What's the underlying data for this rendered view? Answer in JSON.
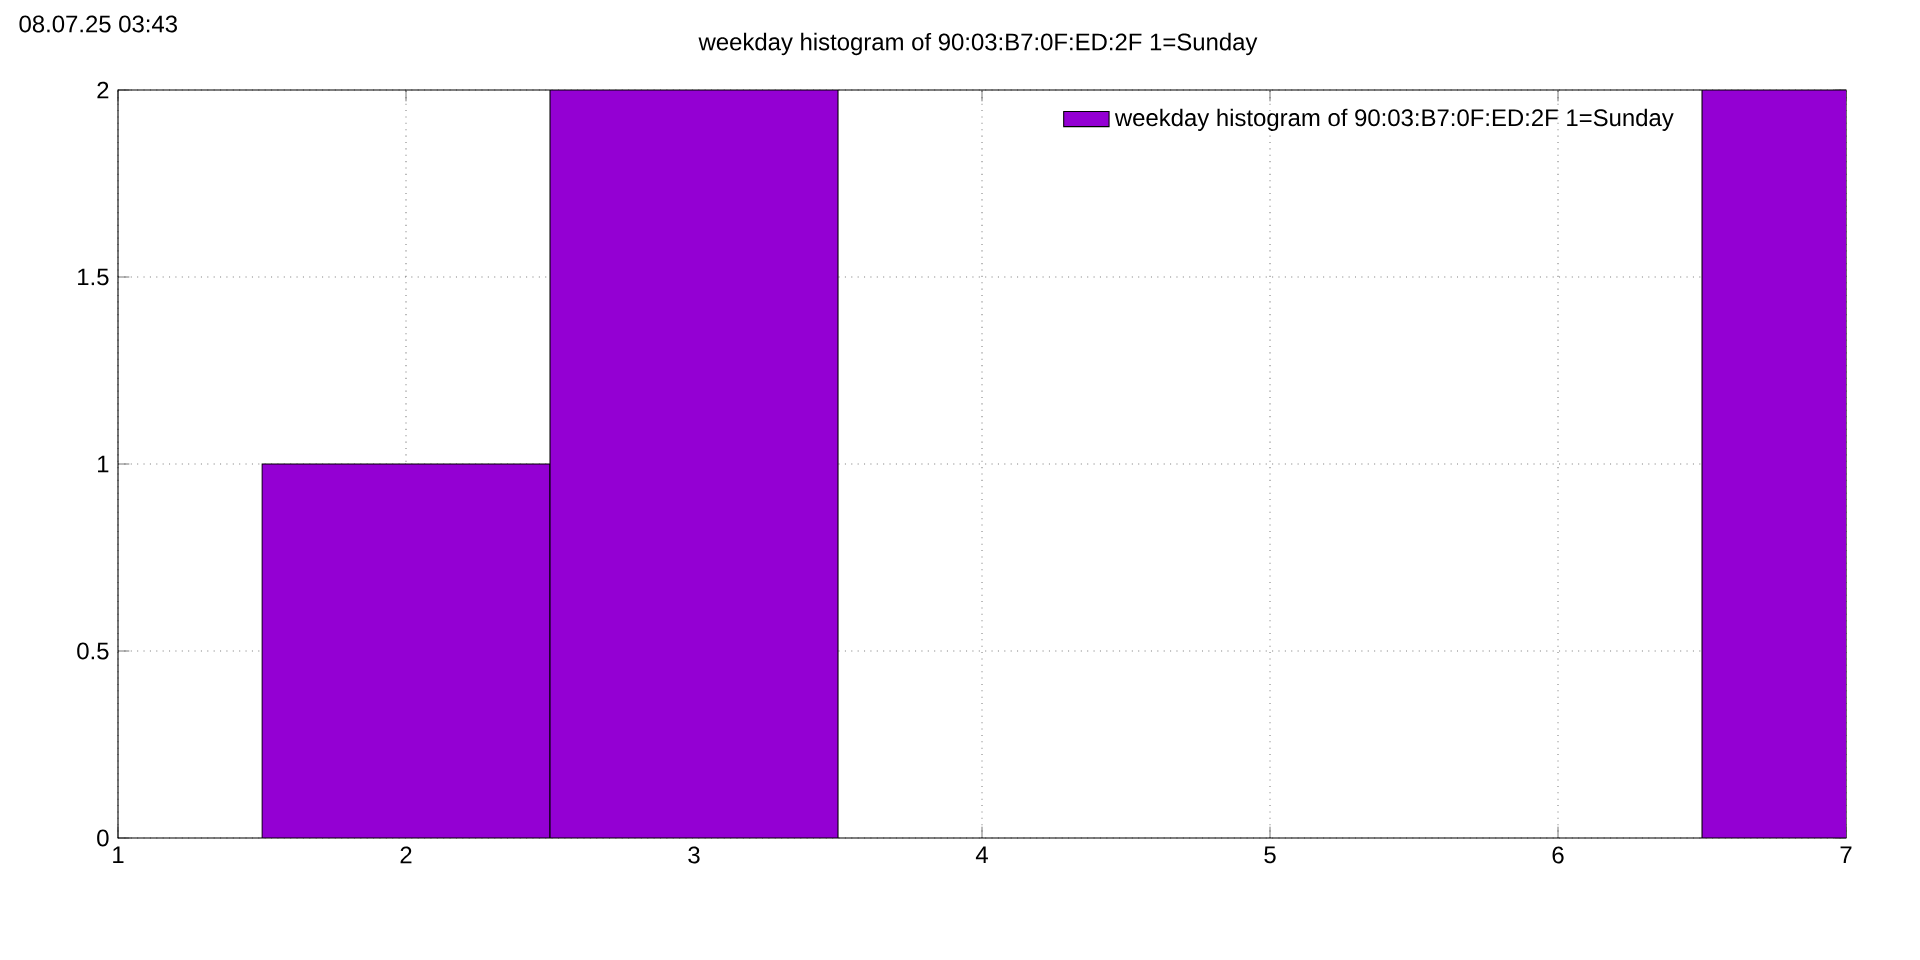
{
  "chart_data": {
    "type": "bar",
    "title": "weekday histogram of 90:03:B7:0F:ED:2F 1=Sunday",
    "annotations": [
      "08.07.25 03:43"
    ],
    "x": [
      2,
      3,
      7
    ],
    "series": [
      {
        "name": "weekday histogram of 90:03:B7:0F:ED:2F 1=Sunday",
        "color": "#9400d3",
        "values": [
          1,
          2,
          2
        ]
      }
    ],
    "xlim": [
      1,
      7
    ],
    "ylim": [
      0,
      2
    ],
    "xticks": [
      1,
      2,
      3,
      4,
      5,
      6,
      7
    ],
    "yticks": [
      0,
      0.5,
      1,
      1.5,
      2
    ],
    "grid": true,
    "legend": "top right"
  }
}
